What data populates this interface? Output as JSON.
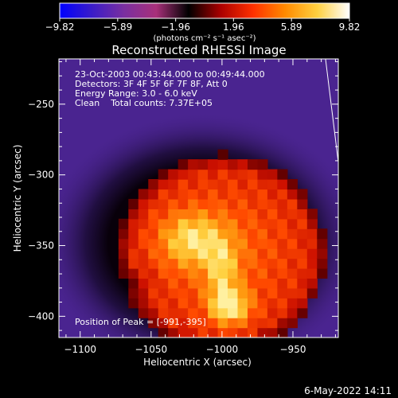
{
  "chart_data": {
    "type": "heatmap",
    "title": "Reconstructed RHESSI Image",
    "xlabel": "Heliocentric X (arcsec)",
    "ylabel": "Heliocentric Y (arcsec)",
    "xlim": [
      -1115,
      -918
    ],
    "ylim": [
      -415,
      -218
    ],
    "x_ticks": [
      -1100,
      -1050,
      -1000,
      -950
    ],
    "x_tick_labels": [
      "−1100",
      "−1050",
      "−1000",
      "−950"
    ],
    "y_ticks": [
      -250,
      -300,
      -350,
      -400
    ],
    "y_tick_labels": [
      "−250",
      "−300",
      "−350",
      "−400"
    ],
    "colorbar": {
      "range": [
        -9.82,
        9.82
      ],
      "ticks": [
        -9.82,
        -5.89,
        -1.96,
        1.96,
        5.89,
        9.82
      ],
      "tick_labels": [
        "−9.82",
        "−5.89",
        "−1.96",
        "1.96",
        "5.89",
        "9.82"
      ],
      "units": "(photons cm⁻² s⁻¹ asec⁻²)",
      "stops": [
        "#0000ff",
        "#3a1cc8",
        "#7a2fa0",
        "#a8307a",
        "#000000",
        "#aa0000",
        "#ff3000",
        "#ff8a00",
        "#ffd040",
        "#ffffff"
      ]
    },
    "annotations": [
      "23-Oct-2003 00:43:44.000 to 00:49:44.000",
      "Detectors: 3F 4F 5F 6F 7F 8F, Att 0",
      "Energy Range: 3.0 - 6.0 keV",
      "Clean    Total counts: 7.37E+05"
    ],
    "peak_label": "Position of Peak = [-991,-395]",
    "peak": [
      -991,
      -395
    ],
    "source": {
      "center": [
        -1000,
        -355
      ],
      "radius": 73
    },
    "limb_line": [
      [
        -927,
        -218
      ],
      [
        -918,
        -291
      ]
    ],
    "grid": false
  },
  "footer": {
    "timestamp": "6-May-2022 14:11"
  }
}
